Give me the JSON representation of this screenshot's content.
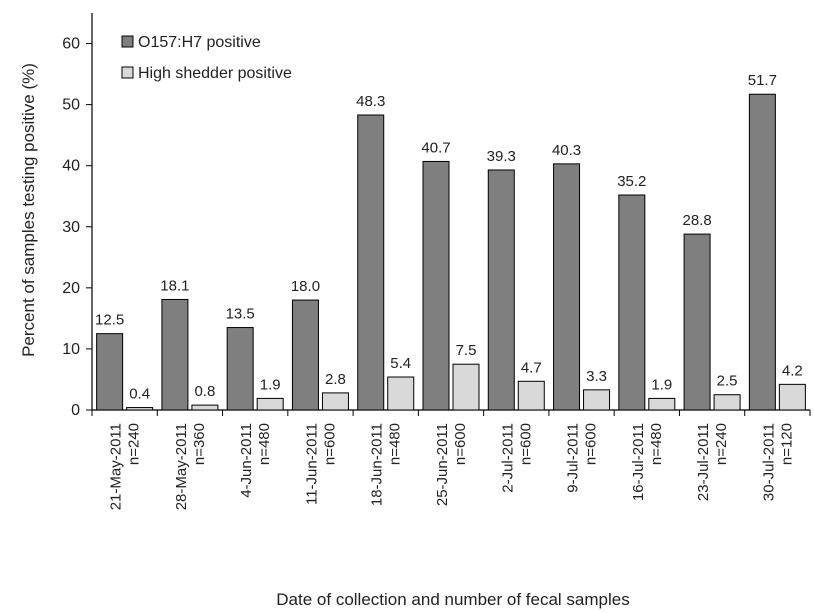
{
  "chart_data": {
    "type": "bar",
    "ylabel": "Percent of samples testing positive (%)",
    "xlabel": "Date  of collection and number of fecal samples",
    "ylim": [
      0,
      65
    ],
    "yticks": [
      0,
      10,
      20,
      30,
      40,
      50,
      60
    ],
    "categories": [
      {
        "date": "21-May-2011",
        "n": "n=240"
      },
      {
        "date": "28-May-2011",
        "n": "n=360"
      },
      {
        "date": "4-Jun-2011",
        "n": "n=480"
      },
      {
        "date": "11-Jun-2011",
        "n": "n=600"
      },
      {
        "date": "18-Jun-2011",
        "n": "n=480"
      },
      {
        "date": "25-Jun-2011",
        "n": "n=600"
      },
      {
        "date": "2-Jul-2011",
        "n": "n=600"
      },
      {
        "date": "9-Jul-2011",
        "n": "n=600"
      },
      {
        "date": "16-Jul-2011",
        "n": "n=480"
      },
      {
        "date": "23-Jul-2011",
        "n": "n=240"
      },
      {
        "date": "30-Jul-2011",
        "n": "n=120"
      }
    ],
    "series": [
      {
        "name": "O157:H7 positive",
        "color": "#7f7f7f",
        "values": [
          12.5,
          18.1,
          13.5,
          18.0,
          48.3,
          40.7,
          39.3,
          40.3,
          35.2,
          28.8,
          51.7
        ],
        "labels": [
          "12.5",
          "18.1",
          "13.5",
          "18.0",
          "48.3",
          "40.7",
          "39.3",
          "40.3",
          "35.2",
          "28.8",
          "51.7"
        ]
      },
      {
        "name": "High shedder positive",
        "color": "#d9d9d9",
        "values": [
          0.4,
          0.8,
          1.9,
          2.8,
          5.4,
          7.5,
          4.7,
          3.3,
          1.9,
          2.5,
          4.2
        ],
        "labels": [
          "0.4",
          "0.8",
          "1.9",
          "2.8",
          "5.4",
          "7.5",
          "4.7",
          "3.3",
          "1.9",
          "2.5",
          "4.2"
        ]
      }
    ],
    "legend_position": "top-left"
  }
}
